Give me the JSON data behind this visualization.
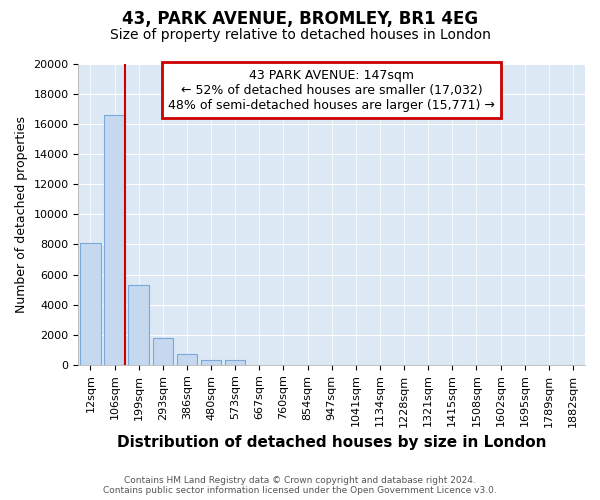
{
  "title1": "43, PARK AVENUE, BROMLEY, BR1 4EG",
  "title2": "Size of property relative to detached houses in London",
  "xlabel": "Distribution of detached houses by size in London",
  "ylabel": "Number of detached properties",
  "categories": [
    "12sqm",
    "106sqm",
    "199sqm",
    "293sqm",
    "386sqm",
    "480sqm",
    "573sqm",
    "667sqm",
    "760sqm",
    "854sqm",
    "947sqm",
    "1041sqm",
    "1134sqm",
    "1228sqm",
    "1321sqm",
    "1415sqm",
    "1508sqm",
    "1602sqm",
    "1695sqm",
    "1789sqm",
    "1882sqm"
  ],
  "values": [
    8100,
    16600,
    5300,
    1800,
    750,
    300,
    290,
    0,
    0,
    0,
    0,
    0,
    0,
    0,
    0,
    0,
    0,
    0,
    0,
    0,
    0
  ],
  "bar_color": "#c5d8f0",
  "bar_edge_color": "#7aa8d8",
  "ylim": [
    0,
    20000
  ],
  "yticks": [
    0,
    2000,
    4000,
    6000,
    8000,
    10000,
    12000,
    14000,
    16000,
    18000,
    20000
  ],
  "vline_x": 1.44,
  "vline_color": "#cc0000",
  "annotation_text": "43 PARK AVENUE: 147sqm\n← 52% of detached houses are smaller (17,032)\n48% of semi-detached houses are larger (15,771) →",
  "annotation_box_color": "#ffffff",
  "annotation_border_color": "#cc0000",
  "footer1": "Contains HM Land Registry data © Crown copyright and database right 2024.",
  "footer2": "Contains public sector information licensed under the Open Government Licence v3.0.",
  "background_color": "#ffffff",
  "plot_bg_color": "#dde8f5",
  "grid_color": "#ffffff",
  "title1_fontsize": 12,
  "title2_fontsize": 10,
  "xlabel_fontsize": 11,
  "ylabel_fontsize": 9,
  "tick_fontsize": 8,
  "annot_fontsize": 9
}
